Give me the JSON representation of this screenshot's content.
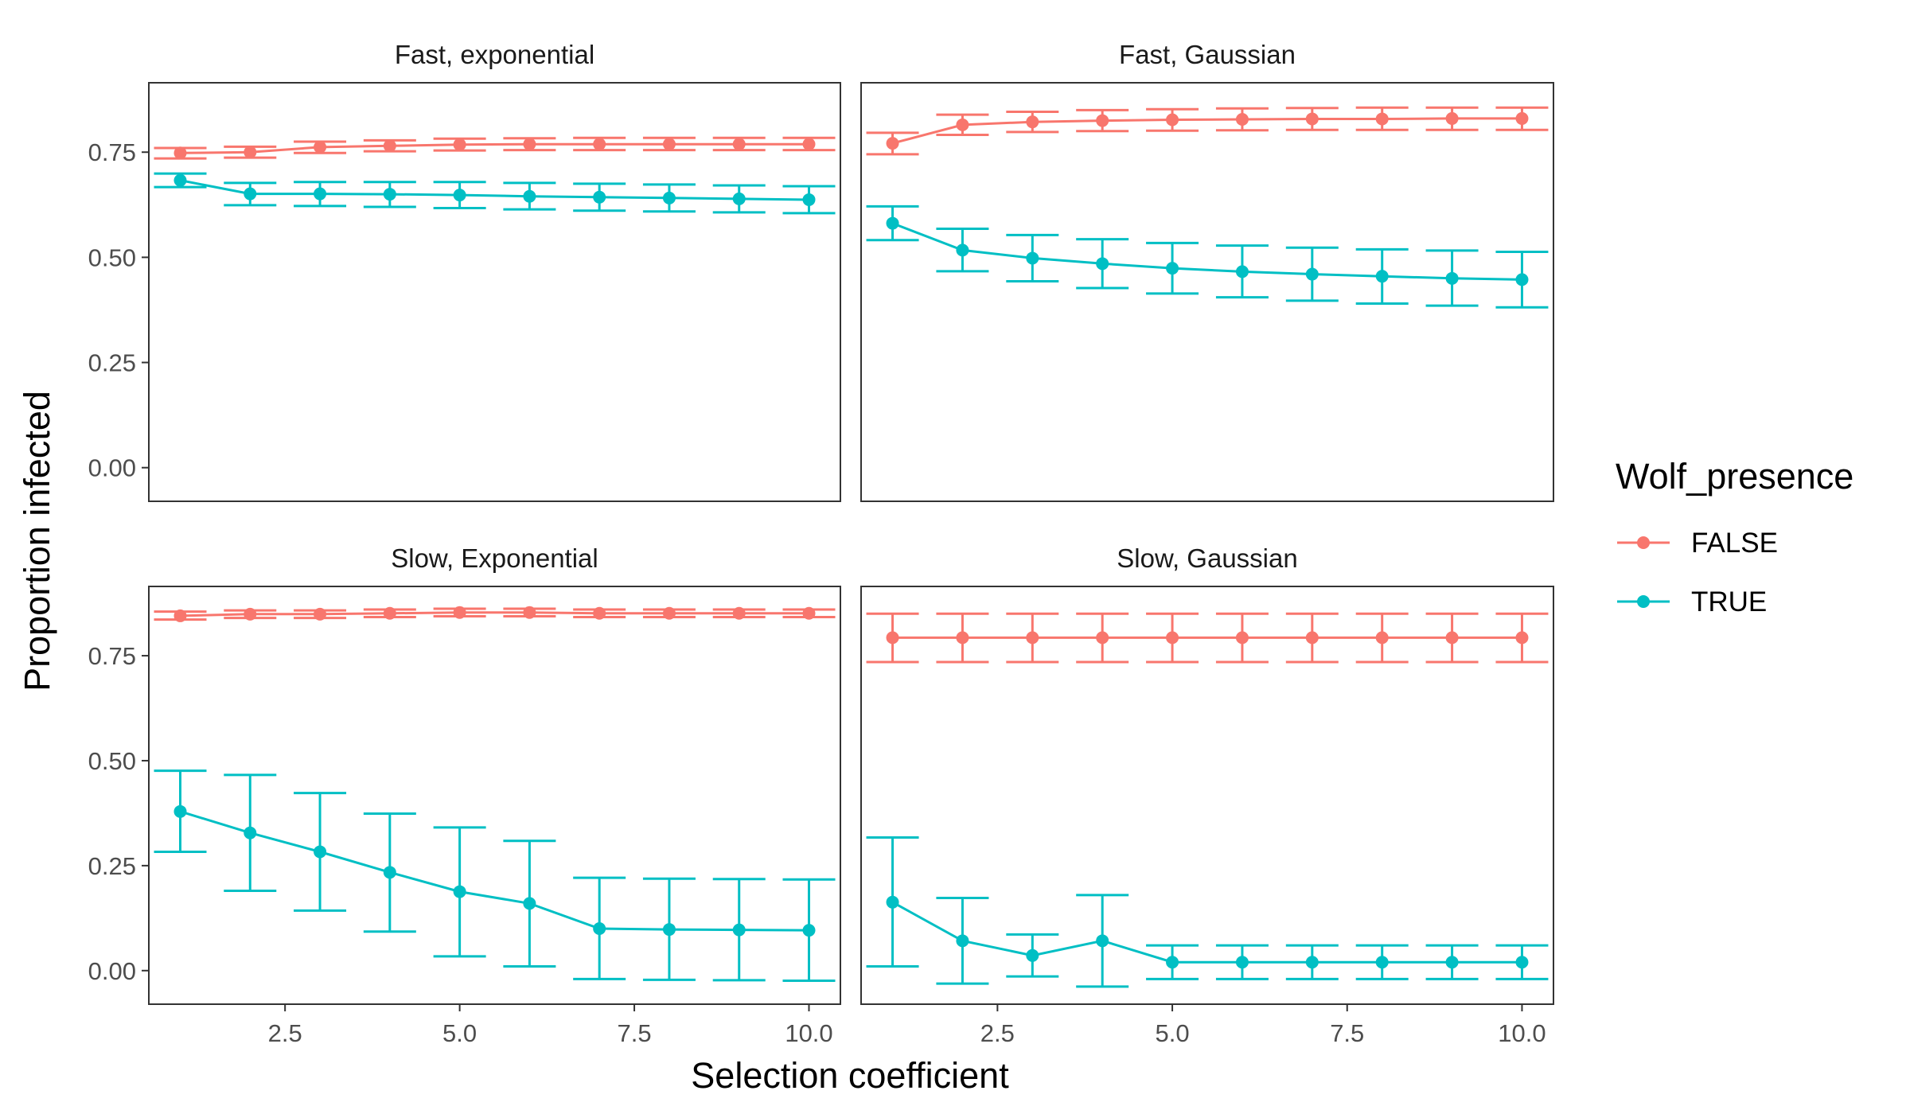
{
  "chart_data": {
    "type": "line",
    "subtype": "faceted line with points and error bars",
    "xlabel": "Selection coefficient",
    "ylabel": "Proportion infected",
    "x_ticks": [
      "2.5",
      "5.0",
      "7.5",
      "10.0"
    ],
    "y_ticks": [
      "0.00",
      "0.25",
      "0.50",
      "0.75"
    ],
    "xlim": [
      0.55,
      10.45
    ],
    "ylim_top": [
      -0.08,
      0.915
    ],
    "ylim_bottom": [
      -0.08,
      0.915
    ],
    "legend": {
      "title": "Wolf_presence",
      "position": "right",
      "entries": [
        {
          "label": "FALSE",
          "color": "#F8766D"
        },
        {
          "label": "TRUE",
          "color": "#00BFC4"
        }
      ]
    },
    "x": [
      1,
      2,
      3,
      4,
      5,
      6,
      7,
      8,
      9,
      10
    ],
    "panels": [
      {
        "title": "Fast, exponential",
        "series": [
          {
            "name": "FALSE",
            "color": "#F8766D",
            "y": [
              0.748,
              0.75,
              0.762,
              0.765,
              0.768,
              0.769,
              0.769,
              0.769,
              0.769,
              0.769
            ],
            "lo": [
              0.735,
              0.737,
              0.748,
              0.752,
              0.754,
              0.755,
              0.755,
              0.755,
              0.755,
              0.755
            ],
            "hi": [
              0.76,
              0.763,
              0.775,
              0.778,
              0.782,
              0.783,
              0.784,
              0.784,
              0.784,
              0.784
            ]
          },
          {
            "name": "TRUE",
            "color": "#00BFC4",
            "y": [
              0.683,
              0.651,
              0.651,
              0.65,
              0.648,
              0.645,
              0.643,
              0.641,
              0.639,
              0.637
            ],
            "lo": [
              0.667,
              0.624,
              0.622,
              0.62,
              0.617,
              0.614,
              0.611,
              0.609,
              0.607,
              0.605
            ],
            "hi": [
              0.699,
              0.677,
              0.679,
              0.679,
              0.679,
              0.677,
              0.675,
              0.673,
              0.671,
              0.669
            ]
          }
        ]
      },
      {
        "title": "Fast, Gaussian",
        "series": [
          {
            "name": "FALSE",
            "color": "#F8766D",
            "y": [
              0.771,
              0.815,
              0.822,
              0.825,
              0.827,
              0.828,
              0.829,
              0.829,
              0.83,
              0.83
            ],
            "lo": [
              0.745,
              0.791,
              0.798,
              0.8,
              0.801,
              0.802,
              0.803,
              0.803,
              0.803,
              0.803
            ],
            "hi": [
              0.796,
              0.839,
              0.846,
              0.85,
              0.852,
              0.854,
              0.855,
              0.856,
              0.856,
              0.856
            ]
          },
          {
            "name": "TRUE",
            "color": "#00BFC4",
            "y": [
              0.581,
              0.517,
              0.498,
              0.485,
              0.474,
              0.466,
              0.46,
              0.455,
              0.45,
              0.447
            ],
            "lo": [
              0.541,
              0.467,
              0.443,
              0.427,
              0.414,
              0.405,
              0.397,
              0.39,
              0.385,
              0.381
            ],
            "hi": [
              0.621,
              0.568,
              0.553,
              0.543,
              0.534,
              0.528,
              0.523,
              0.519,
              0.516,
              0.513
            ]
          }
        ]
      },
      {
        "title": "Slow, Exponential",
        "series": [
          {
            "name": "FALSE",
            "color": "#F8766D",
            "y": [
              0.845,
              0.849,
              0.849,
              0.851,
              0.853,
              0.853,
              0.851,
              0.851,
              0.851,
              0.851
            ],
            "lo": [
              0.836,
              0.84,
              0.84,
              0.842,
              0.844,
              0.844,
              0.842,
              0.842,
              0.842,
              0.842
            ],
            "hi": [
              0.855,
              0.858,
              0.858,
              0.86,
              0.862,
              0.862,
              0.86,
              0.86,
              0.86,
              0.86
            ]
          },
          {
            "name": "TRUE",
            "color": "#00BFC4",
            "y": [
              0.379,
              0.328,
              0.283,
              0.234,
              0.188,
              0.16,
              0.1,
              0.098,
              0.097,
              0.096
            ],
            "lo": [
              0.283,
              0.19,
              0.143,
              0.093,
              0.034,
              0.01,
              -0.02,
              -0.022,
              -0.023,
              -0.024
            ],
            "hi": [
              0.476,
              0.466,
              0.423,
              0.374,
              0.341,
              0.309,
              0.221,
              0.219,
              0.218,
              0.217
            ]
          }
        ]
      },
      {
        "title": "Slow, Gaussian",
        "series": [
          {
            "name": "FALSE",
            "color": "#F8766D",
            "y": [
              0.793,
              0.793,
              0.793,
              0.793,
              0.793,
              0.793,
              0.793,
              0.793,
              0.793,
              0.793
            ],
            "lo": [
              0.735,
              0.735,
              0.735,
              0.735,
              0.735,
              0.735,
              0.735,
              0.735,
              0.735,
              0.735
            ],
            "hi": [
              0.85,
              0.85,
              0.85,
              0.85,
              0.85,
              0.85,
              0.85,
              0.85,
              0.85,
              0.85
            ]
          },
          {
            "name": "TRUE",
            "color": "#00BFC4",
            "y": [
              0.163,
              0.071,
              0.036,
              0.071,
              0.02,
              0.02,
              0.02,
              0.02,
              0.02,
              0.02
            ],
            "lo": [
              0.01,
              -0.031,
              -0.014,
              -0.038,
              -0.02,
              -0.02,
              -0.02,
              -0.02,
              -0.02,
              -0.02
            ],
            "hi": [
              0.317,
              0.173,
              0.086,
              0.18,
              0.06,
              0.06,
              0.06,
              0.06,
              0.06,
              0.06
            ]
          }
        ]
      }
    ]
  }
}
